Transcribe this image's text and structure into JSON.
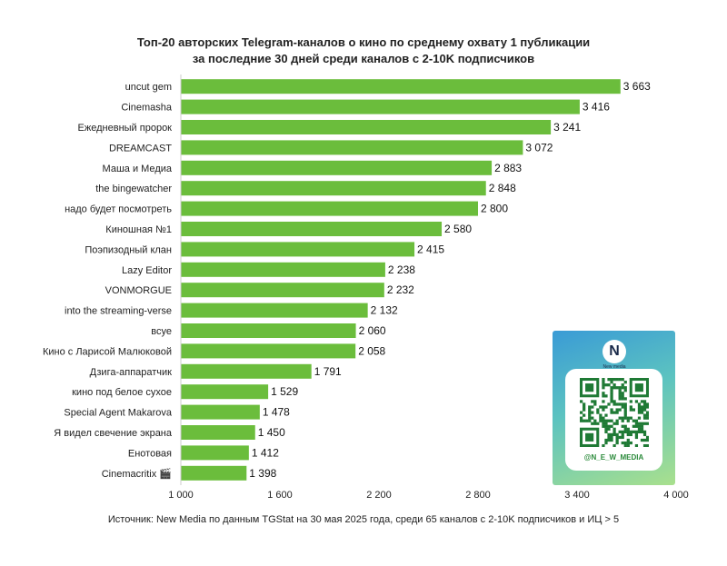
{
  "chart_data": {
    "type": "bar",
    "orientation": "horizontal",
    "title": "Топ-20 авторских Telegram-каналов о кино по среднему охвату 1 публикации",
    "subtitle": "за последние 30 дней среди каналов с 2-10K подписчиков",
    "categories": [
      "uncut gem",
      "Cinemasha",
      "Ежедневный пророк",
      "DREAMCAST",
      "Маша и Медиа",
      "the bingewatcher",
      "надо будет посмотреть",
      "Киношная №1",
      "Поэпизодный клан",
      "Lazy Editor",
      "VONMORGUE",
      "into the streaming-verse",
      "всуе",
      "Кино с Ларисой Малюковой",
      "Дзига-аппаратчик",
      "кино под белое сухое",
      "Special Agent Makarova",
      "Я видел свечение экрана",
      "Енотовая",
      "Cinemacritix 🎬"
    ],
    "values": [
      3663,
      3416,
      3241,
      3072,
      2883,
      2848,
      2800,
      2580,
      2415,
      2238,
      2232,
      2132,
      2060,
      2058,
      1791,
      1529,
      1478,
      1450,
      1412,
      1398
    ],
    "value_labels": [
      "3 663",
      "3 416",
      "3 241",
      "3 072",
      "2 883",
      "2 848",
      "2 800",
      "2 580",
      "2 415",
      "2 238",
      "2 232",
      "2 132",
      "2 060",
      "2 058",
      "1 791",
      "1 529",
      "1 478",
      "1 450",
      "1 412",
      "1 398"
    ],
    "xlim": [
      1000,
      4000
    ],
    "xticks": [
      1000,
      1600,
      2200,
      2800,
      3400,
      4000
    ],
    "xtick_labels": [
      "1 000",
      "1 600",
      "2 200",
      "2 800",
      "3 400",
      "4 000"
    ],
    "bar_color": "#6bbd3c",
    "grid": false,
    "legend": false
  },
  "source": "Источник: New Media по данным TGStat на 30 мая 2025 года, среди 65 каналов с 2-10K подписчиков и ИЦ > 5",
  "qr_card": {
    "logo": "N",
    "logo_text": "New media",
    "handle": "@N_E_W_MEDIA",
    "icon": "qr-code-icon"
  }
}
